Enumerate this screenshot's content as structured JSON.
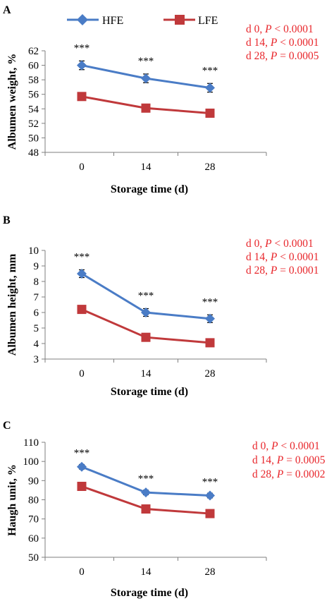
{
  "chart_data": [
    {
      "type": "line",
      "panel": "A",
      "xlabel": "Storage time (d)",
      "ylabel": "Albumen weight, %",
      "categories": [
        "0",
        "14",
        "28"
      ],
      "ylim": [
        48,
        62
      ],
      "yticks": [
        48,
        50,
        52,
        54,
        56,
        58,
        60,
        62
      ],
      "legend": {
        "placement": "top",
        "entries": [
          "HFE",
          "LFE"
        ]
      },
      "series": [
        {
          "name": "HFE",
          "color": "#4a7cc6",
          "marker": "diamond",
          "values": [
            60.0,
            58.2,
            56.9
          ],
          "errors": [
            0.6,
            0.6,
            0.6
          ]
        },
        {
          "name": "LFE",
          "color": "#c0393b",
          "marker": "square",
          "values": [
            55.7,
            54.1,
            53.4
          ],
          "errors": [
            0.5,
            0.5,
            0.5
          ]
        }
      ],
      "significance": [
        "***",
        "***",
        "***"
      ],
      "stats": [
        {
          "day": "d 0, ",
          "p": "P",
          "rest": " < 0.0001"
        },
        {
          "day": "d 14, ",
          "p": "P",
          "rest": " < 0.0001"
        },
        {
          "day": "d 28, ",
          "p": "P",
          "rest": " = 0.0005"
        }
      ]
    },
    {
      "type": "line",
      "panel": "B",
      "xlabel": "Storage time (d)",
      "ylabel": "Albumen height, mm",
      "categories": [
        "0",
        "14",
        "28"
      ],
      "ylim": [
        3,
        10
      ],
      "yticks": [
        3,
        4,
        5,
        6,
        7,
        8,
        9,
        10
      ],
      "series": [
        {
          "name": "HFE",
          "color": "#4a7cc6",
          "marker": "diamond",
          "values": [
            8.5,
            6.0,
            5.6
          ],
          "errors": [
            0.25,
            0.25,
            0.25
          ]
        },
        {
          "name": "LFE",
          "color": "#c0393b",
          "marker": "square",
          "values": [
            6.2,
            4.4,
            4.05
          ],
          "errors": [
            0.15,
            0.15,
            0.15
          ]
        }
      ],
      "significance": [
        "***",
        "***",
        "***"
      ],
      "stats": [
        {
          "day": "d 0, ",
          "p": "P",
          "rest": " < 0.0001"
        },
        {
          "day": "d 14, ",
          "p": "P",
          "rest": " < 0.0001"
        },
        {
          "day": "d 28, ",
          "p": "P",
          "rest": " = 0.0001"
        }
      ]
    },
    {
      "type": "line",
      "panel": "C",
      "xlabel": "Storage time (d)",
      "ylabel": "Haugh unit, %",
      "categories": [
        "0",
        "14",
        "28"
      ],
      "ylim": [
        50,
        110
      ],
      "yticks": [
        50,
        60,
        70,
        80,
        90,
        100,
        110
      ],
      "series": [
        {
          "name": "HFE",
          "color": "#4a7cc6",
          "marker": "diamond",
          "values": [
            97.2,
            83.8,
            82.2
          ],
          "errors": [
            1.2,
            1.2,
            1.2
          ]
        },
        {
          "name": "LFE",
          "color": "#c0393b",
          "marker": "square",
          "values": [
            87.0,
            75.2,
            72.8
          ],
          "errors": [
            0.8,
            0.8,
            0.8
          ]
        }
      ],
      "significance": [
        "***",
        "***",
        "***"
      ],
      "stats": [
        {
          "day": "d 0, ",
          "p": "P",
          "rest": " < 0.0001"
        },
        {
          "day": "d 14, ",
          "p": "P",
          "rest": " = 0.0005"
        },
        {
          "day": "d 28, ",
          "p": "P",
          "rest": " = 0.0002"
        }
      ]
    }
  ]
}
